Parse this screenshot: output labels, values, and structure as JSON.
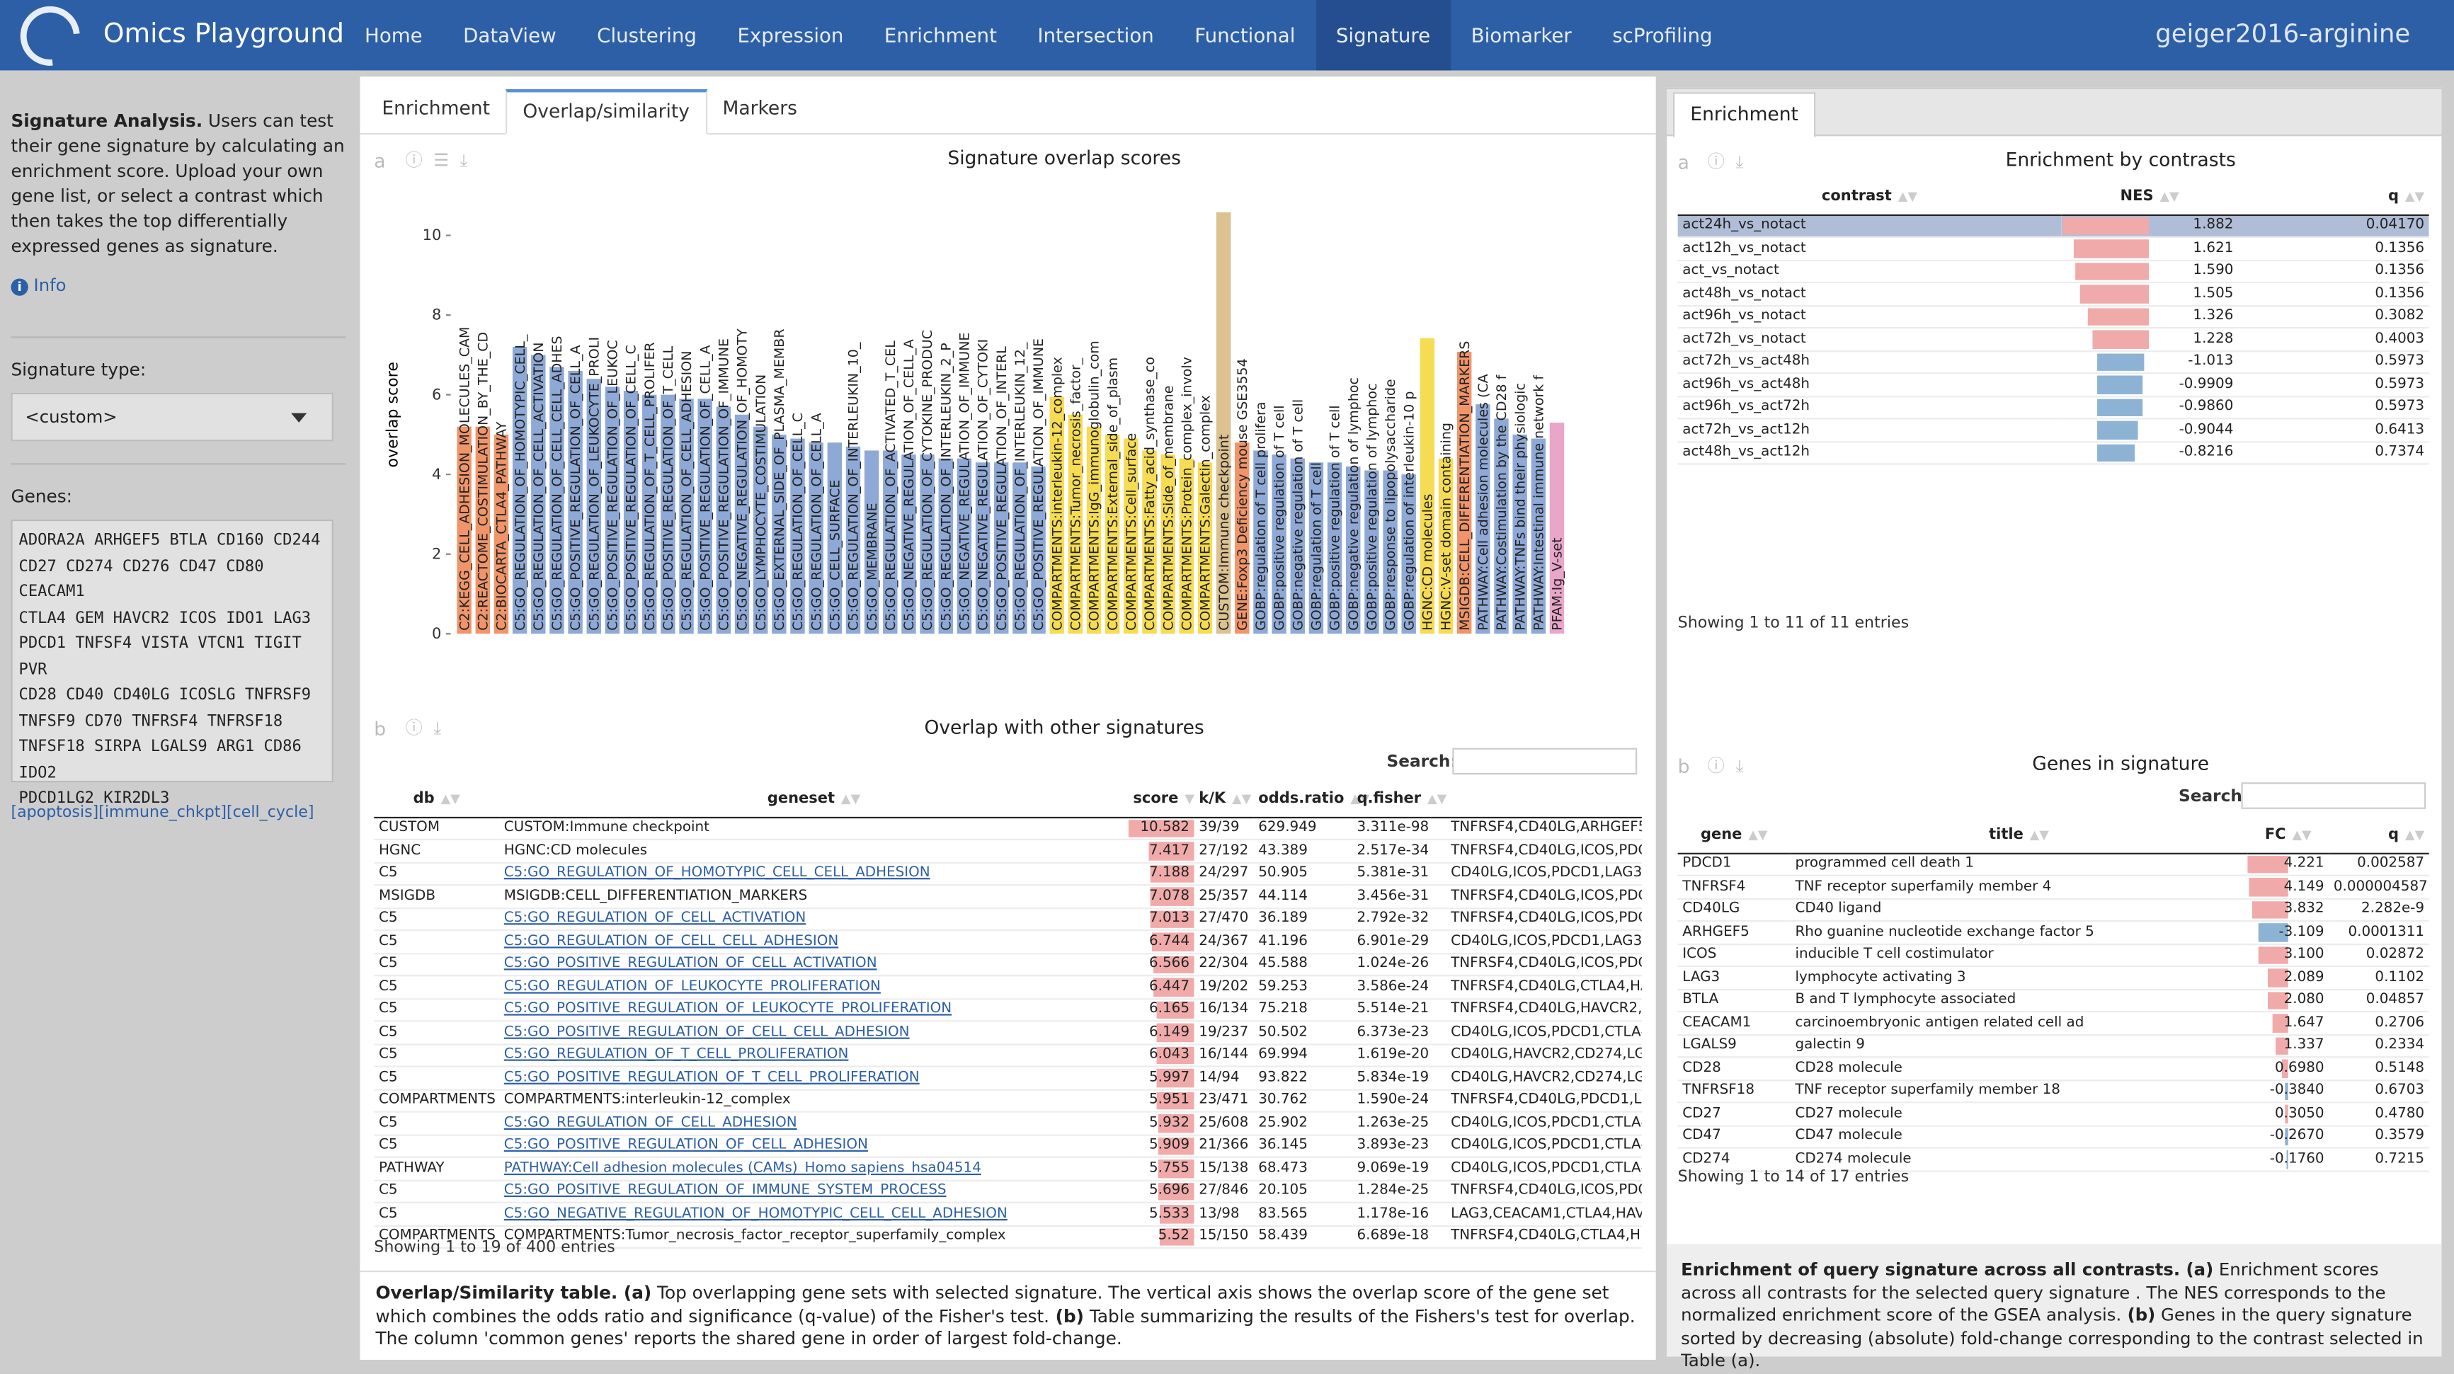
{
  "app": {
    "title": "Omics Playground",
    "dataset": "geiger2016-arginine"
  },
  "nav": [
    "Home",
    "DataView",
    "Clustering",
    "Expression",
    "Enrichment",
    "Intersection",
    "Functional",
    "Signature",
    "Biomarker",
    "scProfiling"
  ],
  "sidebar": {
    "intro_bold": "Signature Analysis.",
    "intro": " Users can test their gene signature by calculating an enrichment score. Upload your own gene list, or select a contrast which then takes the top differentially expressed genes as signature.",
    "info": "Info",
    "sigtype_label": "Signature type:",
    "sigtype_value": "<custom>",
    "genes_label": "Genes:",
    "genes": "ADORA2A ARHGEF5 BTLA CD160 CD244\nCD27 CD274 CD276 CD47 CD80 CEACAM1\nCTLA4 GEM HAVCR2 ICOS IDO1 LAG3\nPDCD1 TNFSF4 VISTA VTCN1 TIGIT PVR\nCD28 CD40 CD40LG ICOSLG TNFRSF9\nTNFSF9 CD70 TNFRSF4 TNFRSF18\nTNFSF18 SIRPA LGALS9 ARG1 CD86 IDO2\nPDCD1LG2 KIR2DL3",
    "links": "[apoptosis][immune_chkpt][cell_cycle]"
  },
  "main": {
    "tabs": [
      "Enrichment",
      "Overlap/similarity",
      "Markers"
    ],
    "panel_a": {
      "label": "a",
      "title": "Signature overlap scores"
    },
    "panel_b": {
      "label": "b",
      "title": "Overlap with other signatures"
    },
    "search_label": "Search:",
    "table_headers": [
      "db",
      "geneset",
      "score",
      "k/K",
      "odds.ratio",
      "q.fisher",
      ""
    ],
    "rows": [
      [
        "CUSTOM",
        "CUSTOM:Immune checkpoint",
        "10.582",
        "39/39",
        "629.949",
        "3.311e-98",
        "TNFRSF4,CD40LG,ARHGEF5"
      ],
      [
        "HGNC",
        "HGNC:CD molecules",
        "7.417",
        "27/192",
        "43.389",
        "2.517e-34",
        "TNFRSF4,CD40LG,ICOS,PDC"
      ],
      [
        "C5",
        "C5:GO_REGULATION_OF_HOMOTYPIC_CELL_CELL_ADHESION",
        "7.188",
        "24/297",
        "50.905",
        "5.381e-31",
        "CD40LG,ICOS,PDCD1,LAG3,"
      ],
      [
        "MSIGDB",
        "MSIGDB:CELL_DIFFERENTIATION_MARKERS",
        "7.078",
        "25/357",
        "44.114",
        "3.456e-31",
        "TNFRSF4,CD40LG,ICOS,PDC"
      ],
      [
        "C5",
        "C5:GO_REGULATION_OF_CELL_ACTIVATION",
        "7.013",
        "27/470",
        "36.189",
        "2.792e-32",
        "TNFRSF4,CD40LG,ICOS,PDC"
      ],
      [
        "C5",
        "C5:GO_REGULATION_OF_CELL_CELL_ADHESION",
        "6.744",
        "24/367",
        "41.196",
        "6.901e-29",
        "CD40LG,ICOS,PDCD1,LAG3,"
      ],
      [
        "C5",
        "C5:GO_POSITIVE_REGULATION_OF_CELL_ACTIVATION",
        "6.566",
        "22/304",
        "45.588",
        "1.024e-26",
        "TNFRSF4,CD40LG,ICOS,PDC"
      ],
      [
        "C5",
        "C5:GO_REGULATION_OF_LEUKOCYTE_PROLIFERATION",
        "6.447",
        "19/202",
        "59.253",
        "3.586e-24",
        "TNFRSF4,CD40LG,CTLA4,HA"
      ],
      [
        "C5",
        "C5:GO_POSITIVE_REGULATION_OF_LEUKOCYTE_PROLIFERATION",
        "6.165",
        "16/134",
        "75.218",
        "5.514e-21",
        "TNFRSF4,CD40LG,HAVCR2,"
      ],
      [
        "C5",
        "C5:GO_POSITIVE_REGULATION_OF_CELL_CELL_ADHESION",
        "6.149",
        "19/237",
        "50.502",
        "6.373e-23",
        "CD40LG,ICOS,PDCD1,CTLA4"
      ],
      [
        "C5",
        "C5:GO_REGULATION_OF_T_CELL_PROLIFERATION",
        "6.043",
        "16/144",
        "69.994",
        "1.619e-20",
        "CD40LG,HAVCR2,CD274,LG"
      ],
      [
        "C5",
        "C5:GO_POSITIVE_REGULATION_OF_T_CELL_PROLIFERATION",
        "5.997",
        "14/94",
        "93.822",
        "5.834e-19",
        "CD40LG,HAVCR2,CD274,LG"
      ],
      [
        "COMPARTMENTS",
        "COMPARTMENTS:interleukin-12_complex",
        "5.951",
        "23/471",
        "30.762",
        "1.590e-24",
        "TNFRSF4,CD40LG,PDCD1,L"
      ],
      [
        "C5",
        "C5:GO_REGULATION_OF_CELL_ADHESION",
        "5.932",
        "25/608",
        "25.902",
        "1.263e-25",
        "CD40LG,ICOS,PDCD1,CTLA4"
      ],
      [
        "C5",
        "C5:GO_POSITIVE_REGULATION_OF_CELL_ADHESION",
        "5.909",
        "21/366",
        "36.145",
        "3.893e-23",
        "CD40LG,ICOS,PDCD1,CTLA4"
      ],
      [
        "PATHWAY",
        "PATHWAY:Cell adhesion molecules (CAMs)_Homo sapiens_hsa04514",
        "5.755",
        "15/138",
        "68.473",
        "9.069e-19",
        "CD40LG,ICOS,PDCD1,CTLA4"
      ],
      [
        "C5",
        "C5:GO_POSITIVE_REGULATION_OF_IMMUNE_SYSTEM_PROCESS",
        "5.696",
        "27/846",
        "20.105",
        "1.284e-25",
        "TNFRSF4,CD40LG,ICOS,PDC"
      ],
      [
        "C5",
        "C5:GO_NEGATIVE_REGULATION_OF_HOMOTYPIC_CELL_CELL_ADHESION",
        "5.533",
        "13/98",
        "83.565",
        "1.178e-16",
        "LAG3,CEACAM1,CTLA4,HAV"
      ],
      [
        "COMPARTMENTS",
        "COMPARTMENTS:Tumor_necrosis_factor_receptor_superfamily_complex",
        "5.52",
        "15/150",
        "58.439",
        "6.689e-18",
        "TNFRSF4,CD40LG,CTLA4,H"
      ]
    ],
    "showing": "Showing 1 to 19 of 400 entries",
    "caption_title": "Overlap/Similarity table.",
    "caption_a": " (a)",
    "caption_mid": " Top overlapping gene sets with selected signature. The vertical axis shows the overlap score of the gene set which combines the odds ratio and significance (q-value) of the Fisher's test.",
    "caption_b": " (b)",
    "caption_end": " Table summarizing the results of the Fishers's test for overlap. The column 'common genes' reports the shared gene in order of largest fold-change."
  },
  "right": {
    "tab": "Enrichment",
    "panel_a": {
      "label": "a",
      "title": "Enrichment by contrasts"
    },
    "enr_headers": [
      "contrast",
      "NES",
      "q"
    ],
    "enr_rows": [
      [
        "act24h_vs_notact",
        "1.882",
        "0.04170"
      ],
      [
        "act12h_vs_notact",
        "1.621",
        "0.1356"
      ],
      [
        "act_vs_notact",
        "1.590",
        "0.1356"
      ],
      [
        "act48h_vs_notact",
        "1.505",
        "0.1356"
      ],
      [
        "act96h_vs_notact",
        "1.326",
        "0.3082"
      ],
      [
        "act72h_vs_notact",
        "1.228",
        "0.4003"
      ],
      [
        "act72h_vs_act48h",
        "-1.013",
        "0.5973"
      ],
      [
        "act96h_vs_act48h",
        "-0.9909",
        "0.5973"
      ],
      [
        "act96h_vs_act72h",
        "-0.9860",
        "0.5973"
      ],
      [
        "act72h_vs_act12h",
        "-0.9044",
        "0.6413"
      ],
      [
        "act48h_vs_act12h",
        "-0.8216",
        "0.7374"
      ]
    ],
    "enr_showing": "Showing 1 to 11 of 11 entries",
    "panel_b": {
      "label": "b",
      "title": "Genes in signature"
    },
    "search_label": "Search:",
    "gene_headers": [
      "gene",
      "title",
      "FC",
      "q"
    ],
    "gene_rows": [
      [
        "PDCD1",
        "programmed cell death 1",
        "4.221",
        "0.002587"
      ],
      [
        "TNFRSF4",
        "TNF receptor superfamily member 4",
        "4.149",
        "0.000004587"
      ],
      [
        "CD40LG",
        "CD40 ligand",
        "3.832",
        "2.282e-9"
      ],
      [
        "ARHGEF5",
        "Rho guanine nucleotide exchange factor 5",
        "-3.109",
        "0.0001311"
      ],
      [
        "ICOS",
        "inducible T cell costimulator",
        "3.100",
        "0.02872"
      ],
      [
        "LAG3",
        "lymphocyte activating 3",
        "2.089",
        "0.1102"
      ],
      [
        "BTLA",
        "B and T lymphocyte associated",
        "2.080",
        "0.04857"
      ],
      [
        "CEACAM1",
        "carcinoembryonic antigen related cell ad",
        "1.647",
        "0.2706"
      ],
      [
        "LGALS9",
        "galectin 9",
        "1.337",
        "0.2334"
      ],
      [
        "CD28",
        "CD28 molecule",
        "0.6980",
        "0.5148"
      ],
      [
        "TNFRSF18",
        "TNF receptor superfamily member 18",
        "-0.3840",
        "0.6703"
      ],
      [
        "CD27",
        "CD27 molecule",
        "0.3050",
        "0.4780"
      ],
      [
        "CD47",
        "CD47 molecule",
        "-0.2670",
        "0.3579"
      ],
      [
        "CD274",
        "CD274 molecule",
        "-0.1760",
        "0.7215"
      ]
    ],
    "gene_showing": "Showing 1 to 14 of 17 entries",
    "footer_title": "Enrichment of query signature across all contrasts.",
    "footer_a": " (a)",
    "footer_mid": " Enrichment scores across all contrasts for the selected query signature . The NES corresponds to the normalized enrichment score of the GSEA analysis.",
    "footer_b": " (b)",
    "footer_end": " Genes in the query signature sorted by decreasing (absolute) fold-change corresponding to the contrast selected in Table (a)."
  },
  "colors": {
    "nav": "#2d5fa7",
    "orange": "#f0956a",
    "blue": "#8fa9d6",
    "yellow": "#f5dc52",
    "tan": "#dcc191",
    "pos": "#f1aaaa",
    "neg": "#8db3d4"
  },
  "chart_data": {
    "type": "bar",
    "title": "Signature overlap scores",
    "ylabel": "overlap score",
    "ylim": [
      0,
      11
    ],
    "yticks": [
      0,
      2,
      4,
      6,
      8,
      10
    ],
    "categories": [
      "C2:KEGG_CELL_ADHESION_MOLECULES_CAM",
      "C2:REACTOME_COSTIMULATION_BY_THE_CD",
      "C2:BIOCARTA_CTLA4_PATHWAY",
      "C5:GO_REGULATION_OF_HOMOTYPIC_CELL_",
      "C5:GO_REGULATION_OF_CELL_ACTIVATION",
      "C5:GO_REGULATION_OF_CELL_CELL_ADHES",
      "C5:GO_POSITIVE_REGULATION_OF_CELL_A",
      "C5:GO_REGULATION_OF_LEUKOCYTE_PROLI",
      "C5:GO_POSITIVE_REGULATION_OF_LEUKOC",
      "C5:GO_POSITIVE_REGULATION_OF_CELL_C",
      "C5:GO_REGULATION_OF_T_CELL_PROLIFER",
      "C5:GO_POSITIVE_REGULATION_OF_T_CELL",
      "C5:GO_REGULATION_OF_CELL_ADHESION",
      "C5:GO_POSITIVE_REGULATION_OF_CELL_A",
      "C5:GO_POSITIVE_REGULATION_OF_IMMUNE",
      "C5:GO_NEGATIVE_REGULATION_OF_HOMOTY",
      "C5:GO_LYMPHOCYTE_COSTIMULATION",
      "C5:GO_EXTERNAL_SIDE_OF_PLASMA_MEMBR",
      "C5:GO_REGULATION_OF_CELL_C",
      "C5:GO_REGULATION_OF_CELL_A",
      "C5:GO_CELL_SURFACE",
      "C5:GO_REGULATION_OF_INTERLEUKIN_10_",
      "C5:GO_MEMBRANE",
      "C5:GO_REGULATION_OF_ACTIVATED_T_CEL",
      "C5:GO_NEGATIVE_REGULATION_OF_CELL_A",
      "C5:GO_REGULATION_OF_CYTOKINE_PRODUC",
      "C5:GO_REGULATION_OF_INTERLEUKIN_2_P",
      "C5:GO_NEGATIVE_REGULATION_OF_IMMUNE",
      "C5:GO_NEGATIVE_REGULATION_OF_CYTOKI",
      "C5:GO_POSITIVE_REGULATION_OF_INTERL",
      "C5:GO_REGULATION_OF_INTERLEUKIN_12_",
      "C5:GO_POSITIVE_REGULATION_OF_IMMUNE",
      "COMPARTMENTS:interleukin-12_complex",
      "COMPARTMENTS:Tumor_necrosis_factor_",
      "COMPARTMENTS:IgG_immunoglobulin_com",
      "COMPARTMENTS:External_side_of_plasm",
      "COMPARTMENTS:Cell_surface",
      "COMPARTMENTS:Fatty_acid_synthase_co",
      "COMPARTMENTS:Side_of_membrane",
      "COMPARTMENTS:Protein_complex_involv",
      "COMPARTMENTS:Galectin_complex",
      "CUSTOM:Immune checkpoint",
      "GENE:Foxp3 Deficiency mouse GSE3554",
      "GOBP:regulation of T cell prolifera",
      "GOBP:positive regulation of T cell",
      "GOBP:negative regulation of T cell",
      "GOBP:regulation of T cell",
      "GOBP:positive regulation of T cell",
      "GOBP:negative regulation of lymphoc",
      "GOBP:positive regulation of lymphoc",
      "GOBP:response to lipopolysaccharide",
      "GOBP:regulation of interleukin-10 p",
      "HGNC:CD molecules",
      "HGNC:V-set domain containing",
      "MSIGDB:CELL_DIFFERENTIATION_MARKERS",
      "PATHWAY:Cell adhesion molecules (CA",
      "PATHWAY:Costimulation by the CD28 f",
      "PATHWAY:TNFs bind their physiologic",
      "PATHWAY:Intestinal immune network f",
      "PFAM:Ig_V-set"
    ],
    "values": [
      5.2,
      5.2,
      5.0,
      7.2,
      7.0,
      6.7,
      6.6,
      6.4,
      6.2,
      6.1,
      6.0,
      6.0,
      5.9,
      5.9,
      5.7,
      5.5,
      5.2,
      5.0,
      4.9,
      4.8,
      4.8,
      4.7,
      4.6,
      4.6,
      4.5,
      4.5,
      4.4,
      4.4,
      4.3,
      4.3,
      4.3,
      4.2,
      5.95,
      5.5,
      5.2,
      5.0,
      4.9,
      4.6,
      4.5,
      4.4,
      4.3,
      10.58,
      4.8,
      4.6,
      4.5,
      4.4,
      4.3,
      4.3,
      4.2,
      4.1,
      4.1,
      4.0,
      7.42,
      4.4,
      7.08,
      5.76,
      5.4,
      5.0,
      4.9,
      5.3
    ],
    "bar_colors": [
      "orange",
      "orange",
      "orange",
      "blue",
      "blue",
      "blue",
      "blue",
      "blue",
      "blue",
      "blue",
      "blue",
      "blue",
      "blue",
      "blue",
      "blue",
      "blue",
      "blue",
      "blue",
      "blue",
      "blue",
      "blue",
      "blue",
      "blue",
      "blue",
      "blue",
      "blue",
      "blue",
      "blue",
      "blue",
      "blue",
      "blue",
      "blue",
      "yellow",
      "yellow",
      "yellow",
      "yellow",
      "yellow",
      "yellow",
      "yellow",
      "yellow",
      "yellow",
      "tan",
      "orange",
      "blue",
      "blue",
      "blue",
      "blue",
      "blue",
      "blue",
      "blue",
      "blue",
      "blue",
      "yellow",
      "yellow",
      "orange",
      "blue",
      "blue",
      "blue",
      "blue",
      "pink"
    ]
  }
}
